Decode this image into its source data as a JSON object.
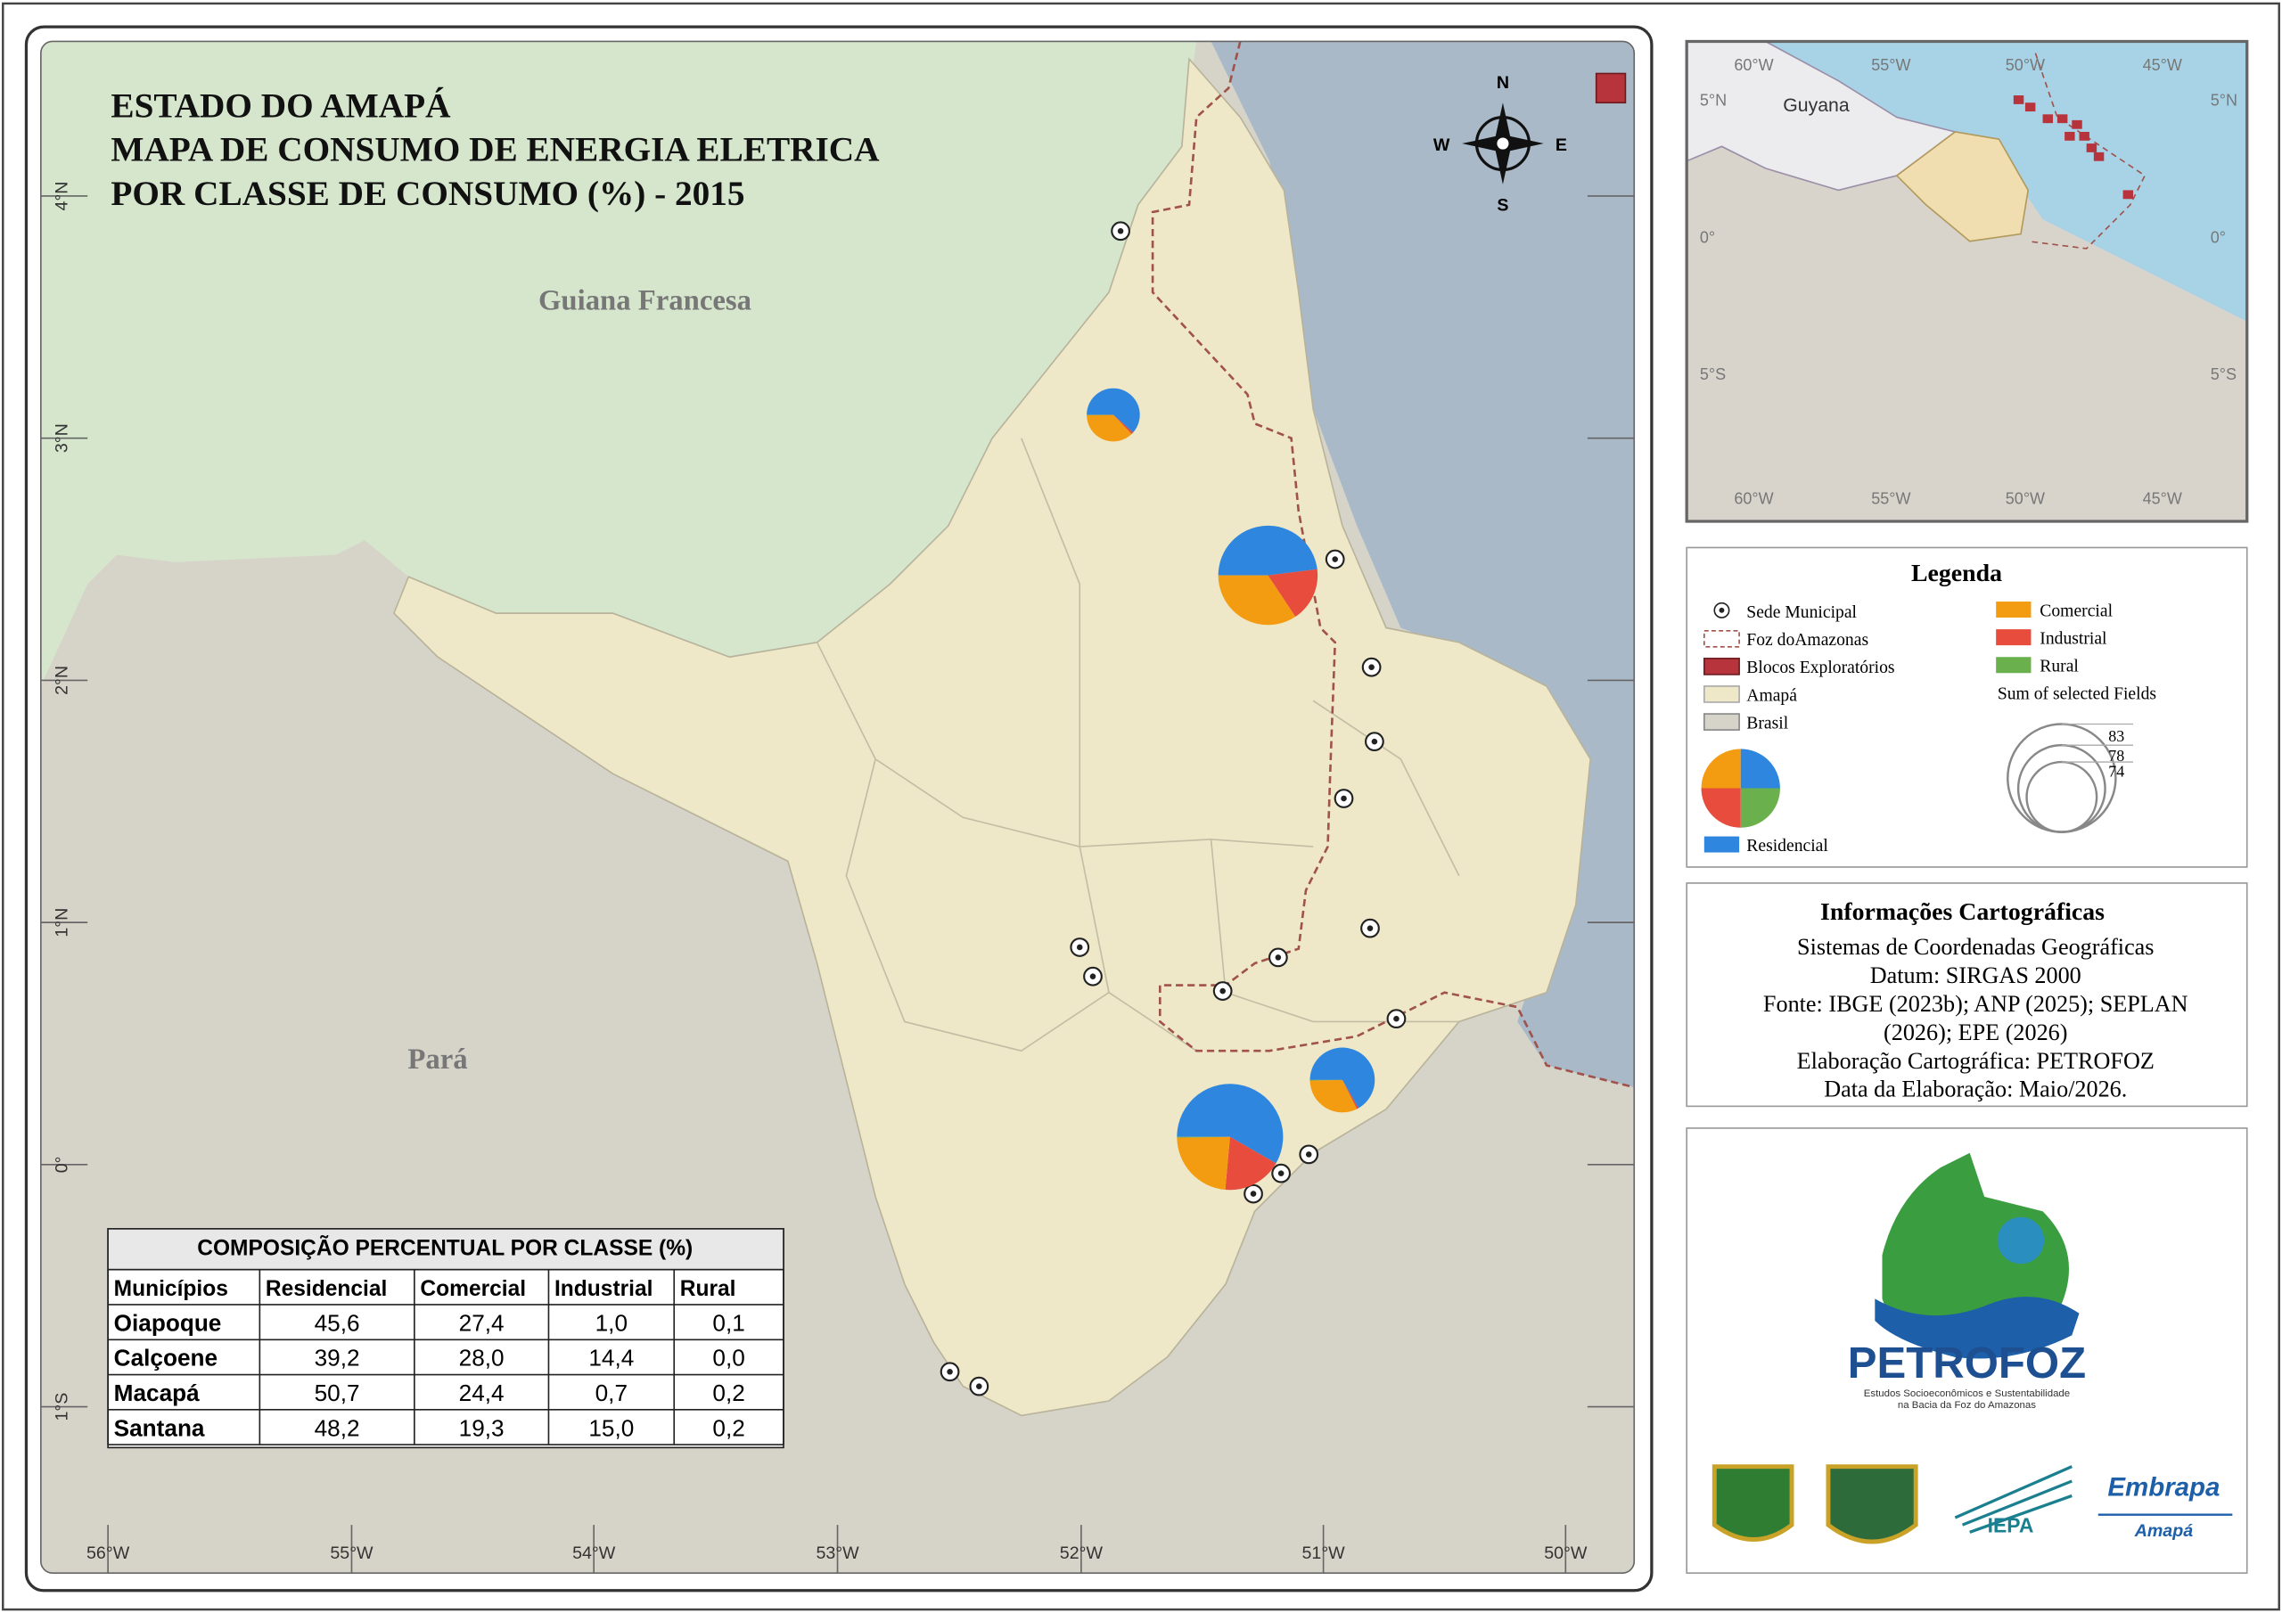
{
  "title": [
    "ESTADO DO AMAPÁ",
    "MAPA DE CONSUMO DE ENERGIA ELETRICA",
    "POR CLASSE DE CONSUMO (%) - 2015"
  ],
  "map": {
    "labels": [
      "Guiana Francesa",
      "Pará"
    ],
    "lon_ticks": [
      "56°W",
      "55°W",
      "54°W",
      "53°W",
      "52°W",
      "51°W",
      "50°W"
    ],
    "lat_ticks": [
      "4°N",
      "3°N",
      "2°N",
      "1°N",
      "0°",
      "1°S"
    ],
    "compass": [
      "N",
      "W",
      "E",
      "S"
    ]
  },
  "inset": {
    "label": "Guyana",
    "lon_ticks": [
      "60°W",
      "55°W",
      "50°W",
      "45°W"
    ],
    "lat_ticks": [
      "5°N",
      "0°",
      "5°S"
    ]
  },
  "legend": {
    "title": "Legenda",
    "items": [
      "Sede Municipal",
      "Foz doAmazonas",
      "Blocos Exploratórios",
      "Amapá",
      "Brasil"
    ],
    "classes": [
      "Residencial",
      "Comercial",
      "Industrial",
      "Rural"
    ],
    "class_colors": [
      "#2e86de",
      "#f39c12",
      "#e74c3c",
      "#6ab04c"
    ],
    "size_title": "Sum of selected Fields",
    "size_values": [
      83,
      78,
      74
    ]
  },
  "info": {
    "title": "Informações Cartográficas",
    "lines": [
      "Sistemas de Coordenadas Geográficas",
      "Datum: SIRGAS 2000",
      "Fonte: IBGE (2023b); ANP (2025); SEPLAN",
      "(2026); EPE (2026)",
      "Elaboração Cartográfica: PETROFOZ",
      "Data da Elaboração: Maio/2026."
    ]
  },
  "logo": {
    "name": "PETROFOZ",
    "tagline": [
      "Estudos Socioeconômicos e Sustentabilidade",
      "na Bacia da Foz do Amazonas"
    ],
    "partners": [
      "IEPA",
      "Embrapa",
      "Amapá"
    ]
  },
  "table": {
    "title": "COMPOSIÇÃO PERCENTUAL POR CLASSE (%)",
    "header": [
      "Municípios",
      "Residencial",
      "Comercial",
      "Industrial",
      "Rural"
    ],
    "rows": [
      [
        "Oiapoque",
        45.6,
        27.4,
        1.0,
        0.1
      ],
      [
        "Calçoene",
        39.2,
        28.0,
        14.4,
        0.0
      ],
      [
        "Macapá",
        50.7,
        24.4,
        0.7,
        0.2
      ],
      [
        "Santana",
        48.2,
        19.3,
        15.0,
        0.2
      ]
    ],
    "value_labels": [
      [
        "45,6",
        "27,4",
        "1,0",
        "0,1"
      ],
      [
        "39,2",
        "28,0",
        "14,4",
        "0,0"
      ],
      [
        "50,7",
        "24,4",
        "0,7",
        "0,2"
      ],
      [
        "48,2",
        "19,3",
        "15,0",
        "0,2"
      ]
    ]
  }
}
